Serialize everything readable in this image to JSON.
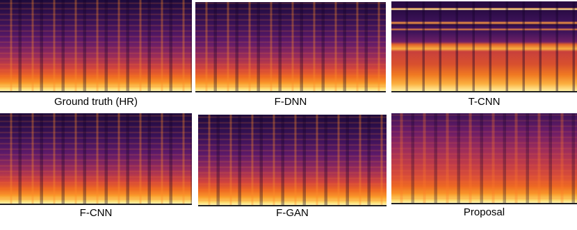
{
  "panels": [
    {
      "label": "Ground truth (HR)"
    },
    {
      "label": "F-DNN"
    },
    {
      "label": "T-CNN"
    },
    {
      "label": "F-CNN"
    },
    {
      "label": "F-GAN"
    },
    {
      "label": "Proposal"
    }
  ]
}
